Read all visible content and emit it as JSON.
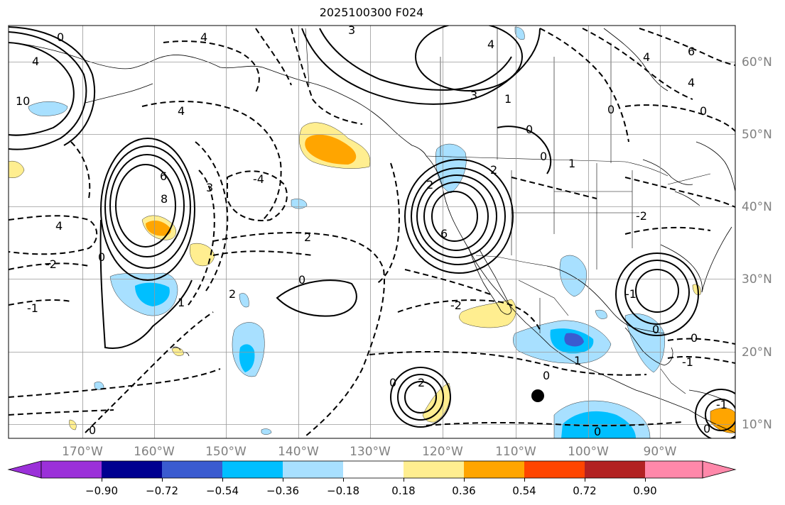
{
  "title": "2025100300 F024",
  "axes": {
    "lon_labels": [
      "170°W",
      "160°W",
      "150°W",
      "140°W",
      "130°W",
      "120°W",
      "110°W",
      "100°W",
      "90°W"
    ],
    "lat_labels": [
      "60°N",
      "50°N",
      "40°N",
      "30°N",
      "20°N",
      "10°N"
    ],
    "lon_range": [
      -180,
      -80
    ],
    "lat_range": [
      8,
      66
    ]
  },
  "colorbar": {
    "tick_labels": [
      "−0.90",
      "−0.72",
      "−0.54",
      "−0.36",
      "−0.18",
      "0.18",
      "0.36",
      "0.54",
      "0.72",
      "0.90"
    ],
    "colors": [
      "#9b30d9",
      "#000090",
      "#3a5bd0",
      "#00bfff",
      "#a8e0ff",
      "#ffffff",
      "#ffee90",
      "#ffa500",
      "#ff4500",
      "#b22222",
      "#ff88aa"
    ],
    "extend": "both"
  },
  "contour_labels": [
    {
      "text": "0"
    },
    {
      "text": "2"
    },
    {
      "text": "4"
    },
    {
      "text": "6"
    },
    {
      "text": "3"
    },
    {
      "text": "8"
    },
    {
      "text": "-2"
    },
    {
      "text": "-4"
    },
    {
      "text": "-6"
    },
    {
      "text": "-1"
    },
    {
      "text": "1"
    },
    {
      "text": "10"
    }
  ],
  "marker": {
    "lon": -107,
    "lat": 14,
    "color": "#000000"
  },
  "fill_colors": {
    "light_blue": "#a8e0ff",
    "blue": "#00bfff",
    "dark_blue": "#3a5bd0",
    "yellow": "#ffee90",
    "orange": "#ffa500"
  }
}
